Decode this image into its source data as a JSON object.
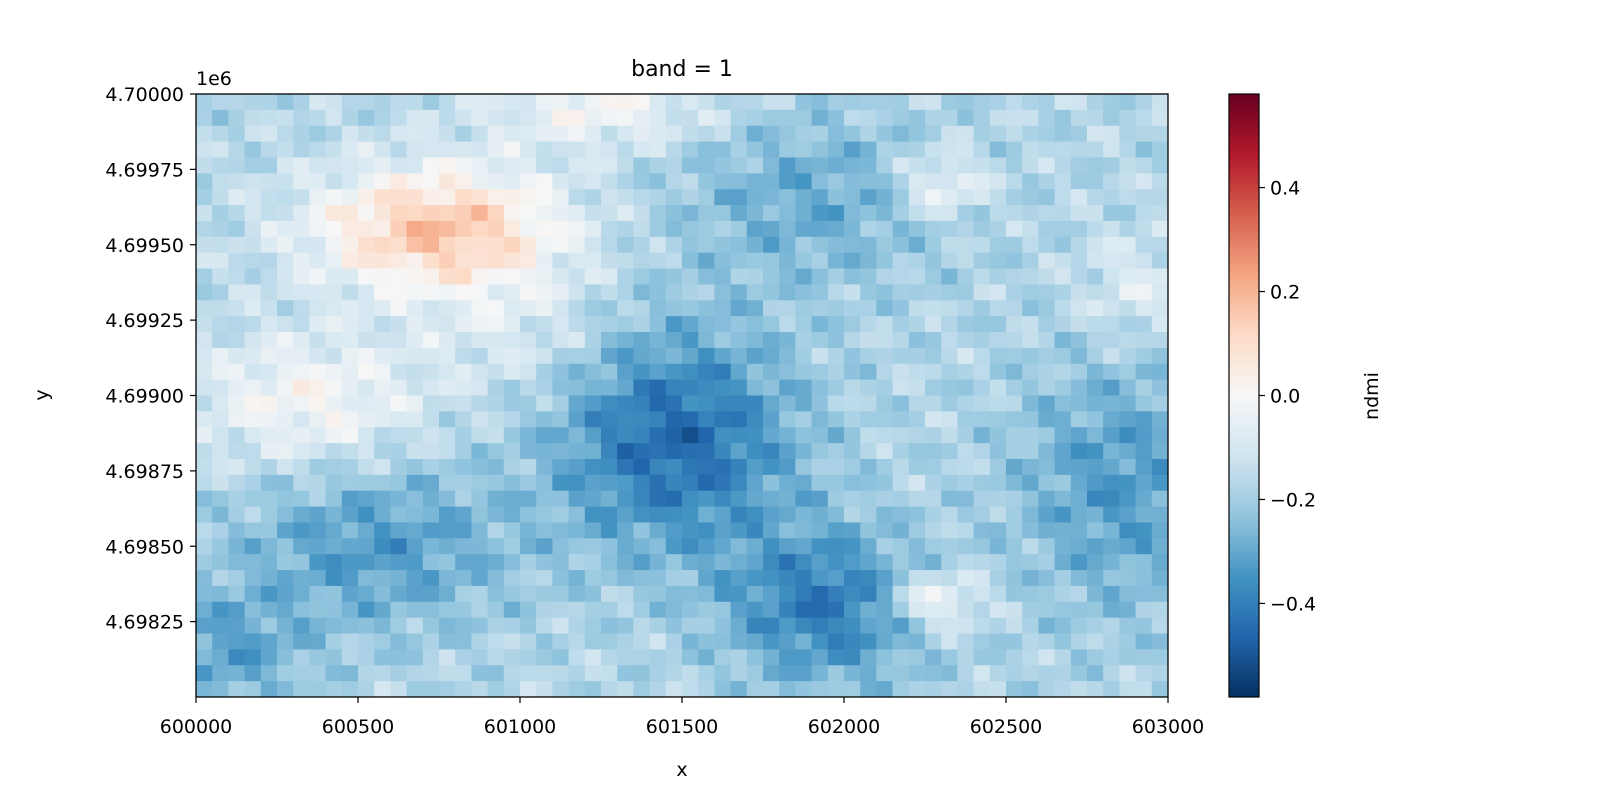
{
  "chart_data": {
    "type": "heatmap",
    "title": "band = 1",
    "xlabel": "x",
    "ylabel": "y",
    "y_offset_label": "1e6",
    "xlim": [
      600000,
      603000
    ],
    "ylim": [
      4698000,
      4700000
    ],
    "x_ticks": [
      600000,
      600500,
      601000,
      601500,
      602000,
      602500,
      603000
    ],
    "x_tick_labels": [
      "600000",
      "600500",
      "601000",
      "601500",
      "602000",
      "602500",
      "603000"
    ],
    "y_ticks": [
      4698250,
      4698500,
      4698750,
      4699000,
      4699250,
      4699500,
      4699750,
      4700000
    ],
    "y_tick_labels": [
      "4.69825",
      "4.69850",
      "4.69875",
      "4.69900",
      "4.69925",
      "4.69950",
      "4.69975",
      "4.70000"
    ],
    "colorbar": {
      "label": "ndmi",
      "colormap": "RdBu_r",
      "vmin": -0.58,
      "vmax": 0.58,
      "ticks": [
        -0.4,
        -0.2,
        0.0,
        0.2,
        0.4
      ],
      "tick_labels": [
        "−0.4",
        "−0.2",
        "0.0",
        "0.2",
        "0.4"
      ]
    },
    "field": {
      "grid_cols": 60,
      "grid_rows": 38,
      "base_value": -0.17,
      "features": [
        {
          "x": 600750,
          "y": 4699550,
          "sx": 280,
          "sy": 150,
          "amp": 0.34
        },
        {
          "x": 600350,
          "y": 4698980,
          "sx": 260,
          "sy": 160,
          "amp": 0.17
        },
        {
          "x": 601250,
          "y": 4699950,
          "sx": 240,
          "sy": 90,
          "amp": 0.16
        },
        {
          "x": 602280,
          "y": 4698320,
          "sx": 110,
          "sy": 70,
          "amp": 0.2
        },
        {
          "x": 602300,
          "y": 4699700,
          "sx": 100,
          "sy": 80,
          "amp": 0.16
        },
        {
          "x": 602900,
          "y": 4699350,
          "sx": 120,
          "sy": 130,
          "amp": 0.1
        },
        {
          "x": 601480,
          "y": 4698850,
          "sx": 260,
          "sy": 260,
          "amp": -0.28
        },
        {
          "x": 601950,
          "y": 4698300,
          "sx": 220,
          "sy": 180,
          "amp": -0.24
        },
        {
          "x": 600550,
          "y": 4698500,
          "sx": 300,
          "sy": 200,
          "amp": -0.16
        },
        {
          "x": 602850,
          "y": 4698700,
          "sx": 230,
          "sy": 300,
          "amp": -0.16
        },
        {
          "x": 601900,
          "y": 4699650,
          "sx": 300,
          "sy": 200,
          "amp": -0.12
        },
        {
          "x": 600100,
          "y": 4698150,
          "sx": 160,
          "sy": 140,
          "amp": -0.14
        },
        {
          "x": 601000,
          "y": 4699200,
          "sx": 200,
          "sy": 150,
          "amp": 0.08
        }
      ]
    }
  },
  "colors": {
    "colormap_stops": [
      "#053061",
      "#2166ac",
      "#4393c3",
      "#92c5de",
      "#d1e5f0",
      "#f7f7f7",
      "#fddbc7",
      "#f4a582",
      "#d6604d",
      "#b2182b",
      "#67001f"
    ]
  }
}
